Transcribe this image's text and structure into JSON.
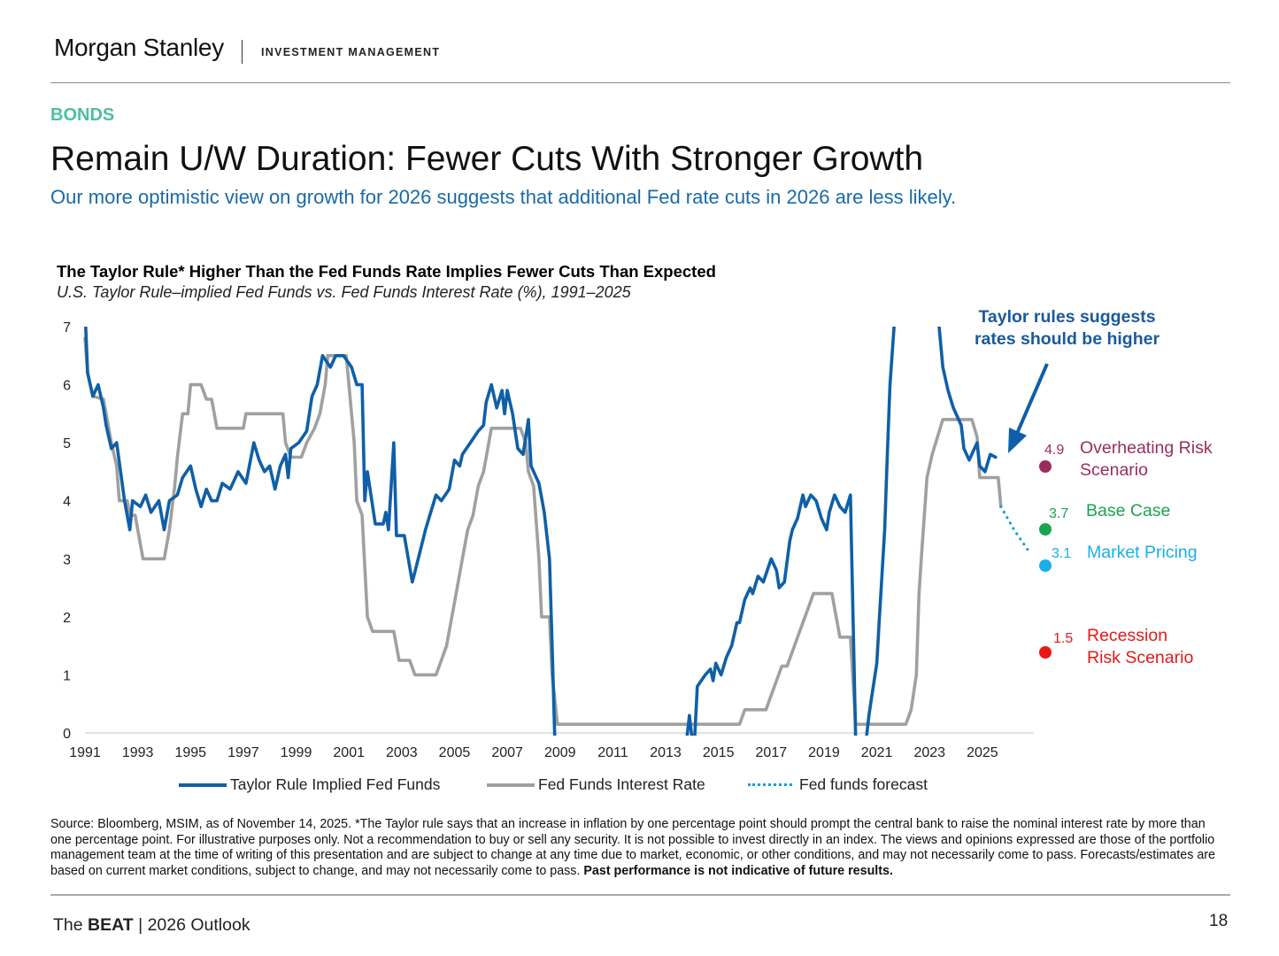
{
  "header": {
    "logo": "Morgan Stanley",
    "division": "INVESTMENT MANAGEMENT"
  },
  "section": "BONDS",
  "title": "Remain U/W Duration: Fewer Cuts With Stronger Growth",
  "subtitle": "Our more optimistic view on growth for 2026 suggests that additional Fed rate cuts in 2026 are less likely.",
  "colors": {
    "taylor": "#0f5fa8",
    "fedfunds": "#a0a0a0",
    "forecast": "#1aa0d0",
    "overheating": "#9b2d5e",
    "base": "#1aa550",
    "market": "#1aaee8",
    "recession": "#e81818",
    "section": "#4dbfa0",
    "subtitle": "#1a6aa5"
  },
  "chart_data": {
    "type": "line",
    "title": "The Taylor Rule* Higher Than the Fed Funds Rate Implies Fewer Cuts Than Expected",
    "subtitle": "U.S. Taylor Rule–implied Fed Funds vs. Fed Funds Interest Rate (%), 1991–2025",
    "xlabel": "",
    "ylabel": "",
    "xlim": [
      1991,
      2028
    ],
    "ylim": [
      0,
      7
    ],
    "x_ticks": [
      "1991",
      "1993",
      "1995",
      "1997",
      "1999",
      "2001",
      "2003",
      "2005",
      "2007",
      "2009",
      "2011",
      "2013",
      "2015",
      "2017",
      "2019",
      "2021",
      "2023",
      "2025"
    ],
    "y_ticks": [
      "0",
      "1",
      "2",
      "3",
      "4",
      "5",
      "6",
      "7"
    ],
    "grid": false,
    "legend_position": "bottom",
    "series": [
      {
        "name": "Taylor Rule Implied Fed Funds",
        "style": "solid",
        "points": [
          [
            1991.0,
            7.0
          ],
          [
            1991.1,
            6.2
          ],
          [
            1991.3,
            5.8
          ],
          [
            1991.5,
            6.0
          ],
          [
            1991.7,
            5.6
          ],
          [
            1991.8,
            5.3
          ],
          [
            1992.0,
            4.9
          ],
          [
            1992.2,
            5.0
          ],
          [
            1992.5,
            4.0
          ],
          [
            1992.7,
            3.5
          ],
          [
            1992.8,
            4.0
          ],
          [
            1993.1,
            3.9
          ],
          [
            1993.3,
            4.1
          ],
          [
            1993.5,
            3.8
          ],
          [
            1993.8,
            4.0
          ],
          [
            1994.0,
            3.5
          ],
          [
            1994.2,
            4.0
          ],
          [
            1994.5,
            4.1
          ],
          [
            1994.7,
            4.4
          ],
          [
            1995.0,
            4.6
          ],
          [
            1995.2,
            4.2
          ],
          [
            1995.4,
            3.9
          ],
          [
            1995.6,
            4.2
          ],
          [
            1995.8,
            4.0
          ],
          [
            1996.0,
            4.0
          ],
          [
            1996.2,
            4.3
          ],
          [
            1996.5,
            4.2
          ],
          [
            1996.8,
            4.5
          ],
          [
            1997.1,
            4.3
          ],
          [
            1997.4,
            5.0
          ],
          [
            1997.6,
            4.7
          ],
          [
            1997.8,
            4.5
          ],
          [
            1998.0,
            4.6
          ],
          [
            1998.2,
            4.2
          ],
          [
            1998.4,
            4.6
          ],
          [
            1998.6,
            4.8
          ],
          [
            1998.7,
            4.4
          ],
          [
            1998.8,
            4.9
          ],
          [
            1999.1,
            5.0
          ],
          [
            1999.4,
            5.2
          ],
          [
            1999.6,
            5.8
          ],
          [
            1999.8,
            6.0
          ],
          [
            2000.0,
            6.5
          ],
          [
            2000.3,
            6.3
          ],
          [
            2000.5,
            6.5
          ],
          [
            2000.8,
            6.5
          ],
          [
            2001.1,
            6.3
          ],
          [
            2001.3,
            6.0
          ],
          [
            2001.5,
            6.0
          ],
          [
            2001.6,
            4.0
          ],
          [
            2001.7,
            4.5
          ],
          [
            2002.0,
            3.6
          ],
          [
            2002.3,
            3.6
          ],
          [
            2002.4,
            3.8
          ],
          [
            2002.5,
            3.5
          ],
          [
            2002.7,
            5.0
          ],
          [
            2002.8,
            3.4
          ],
          [
            2003.1,
            3.4
          ],
          [
            2003.4,
            2.6
          ],
          [
            2003.6,
            2.95
          ],
          [
            2003.9,
            3.5
          ],
          [
            2004.1,
            3.8
          ],
          [
            2004.3,
            4.1
          ],
          [
            2004.5,
            4.0
          ],
          [
            2004.8,
            4.2
          ],
          [
            2005.0,
            4.7
          ],
          [
            2005.2,
            4.6
          ],
          [
            2005.3,
            4.8
          ],
          [
            2005.6,
            5.0
          ],
          [
            2005.9,
            5.2
          ],
          [
            2006.1,
            5.3
          ],
          [
            2006.2,
            5.7
          ],
          [
            2006.4,
            6.0
          ],
          [
            2006.6,
            5.6
          ],
          [
            2006.8,
            5.9
          ],
          [
            2006.9,
            5.5
          ],
          [
            2007.0,
            5.9
          ],
          [
            2007.2,
            5.5
          ],
          [
            2007.4,
            4.9
          ],
          [
            2007.6,
            4.8
          ],
          [
            2007.8,
            5.4
          ],
          [
            2007.9,
            4.6
          ],
          [
            2008.2,
            4.3
          ],
          [
            2008.4,
            3.8
          ],
          [
            2008.6,
            3.0
          ],
          [
            2008.7,
            1.5
          ],
          [
            2008.8,
            0.0
          ],
          [
            2013.8,
            0.0
          ],
          [
            2013.9,
            0.3
          ],
          [
            2014.0,
            0.0
          ],
          [
            2014.1,
            0.0
          ],
          [
            2014.2,
            0.8
          ],
          [
            2014.5,
            1.0
          ],
          [
            2014.7,
            1.1
          ],
          [
            2014.8,
            0.9
          ],
          [
            2014.9,
            1.2
          ],
          [
            2015.1,
            1.0
          ],
          [
            2015.3,
            1.3
          ],
          [
            2015.5,
            1.5
          ],
          [
            2015.7,
            1.9
          ],
          [
            2015.8,
            1.9
          ],
          [
            2016.0,
            2.3
          ],
          [
            2016.2,
            2.5
          ],
          [
            2016.3,
            2.4
          ],
          [
            2016.5,
            2.7
          ],
          [
            2016.7,
            2.6
          ],
          [
            2017.0,
            3.0
          ],
          [
            2017.2,
            2.8
          ],
          [
            2017.3,
            2.5
          ],
          [
            2017.5,
            2.6
          ],
          [
            2017.7,
            3.3
          ],
          [
            2017.8,
            3.5
          ],
          [
            2018.0,
            3.7
          ],
          [
            2018.2,
            4.1
          ],
          [
            2018.3,
            3.9
          ],
          [
            2018.5,
            4.1
          ],
          [
            2018.7,
            4.0
          ],
          [
            2018.9,
            3.7
          ],
          [
            2019.1,
            3.5
          ],
          [
            2019.2,
            3.8
          ],
          [
            2019.4,
            4.1
          ],
          [
            2019.6,
            3.9
          ],
          [
            2019.8,
            3.8
          ],
          [
            2020.0,
            4.1
          ],
          [
            2020.2,
            0.0
          ],
          [
            2020.6,
            0.0
          ],
          [
            2020.7,
            0.3
          ],
          [
            2020.8,
            0.6
          ],
          [
            2021.0,
            1.2
          ],
          [
            2021.1,
            2.0
          ],
          [
            2021.3,
            3.5
          ],
          [
            2021.4,
            4.8
          ],
          [
            2021.5,
            6.0
          ],
          [
            2021.7,
            7.0
          ],
          [
            2023.3,
            7.0
          ],
          [
            2023.5,
            6.3
          ],
          [
            2023.7,
            5.9
          ],
          [
            2023.9,
            5.6
          ],
          [
            2024.0,
            5.5
          ],
          [
            2024.2,
            5.3
          ],
          [
            2024.3,
            4.9
          ],
          [
            2024.5,
            4.7
          ],
          [
            2024.7,
            4.9
          ],
          [
            2024.8,
            5.0
          ],
          [
            2024.9,
            4.6
          ],
          [
            2025.1,
            4.5
          ],
          [
            2025.3,
            4.8
          ],
          [
            2025.5,
            4.75
          ]
        ]
      },
      {
        "name": "Fed Funds Interest Rate",
        "style": "solid",
        "points": [
          [
            1991.0,
            6.8
          ],
          [
            1991.1,
            6.2
          ],
          [
            1991.3,
            5.8
          ],
          [
            1991.7,
            5.75
          ],
          [
            1991.8,
            5.5
          ],
          [
            1992.0,
            5.0
          ],
          [
            1992.2,
            4.6
          ],
          [
            1992.3,
            4.0
          ],
          [
            1992.6,
            4.0
          ],
          [
            1992.7,
            3.75
          ],
          [
            1992.9,
            3.75
          ],
          [
            1993.1,
            3.25
          ],
          [
            1993.2,
            3.0
          ],
          [
            1994.0,
            3.0
          ],
          [
            1994.2,
            3.5
          ],
          [
            1994.4,
            4.25
          ],
          [
            1994.5,
            4.75
          ],
          [
            1994.7,
            5.5
          ],
          [
            1994.9,
            5.5
          ],
          [
            1995.0,
            6.0
          ],
          [
            1995.4,
            6.0
          ],
          [
            1995.6,
            5.75
          ],
          [
            1995.8,
            5.75
          ],
          [
            1996.0,
            5.25
          ],
          [
            1997.0,
            5.25
          ],
          [
            1997.1,
            5.5
          ],
          [
            1998.5,
            5.5
          ],
          [
            1998.6,
            5.0
          ],
          [
            1998.8,
            4.75
          ],
          [
            1999.2,
            4.75
          ],
          [
            1999.4,
            5.0
          ],
          [
            1999.7,
            5.25
          ],
          [
            1999.9,
            5.5
          ],
          [
            2000.1,
            6.0
          ],
          [
            2000.2,
            6.5
          ],
          [
            2000.9,
            6.5
          ],
          [
            2001.1,
            5.5
          ],
          [
            2001.2,
            5.0
          ],
          [
            2001.3,
            4.0
          ],
          [
            2001.5,
            3.75
          ],
          [
            2001.7,
            2.0
          ],
          [
            2001.9,
            1.75
          ],
          [
            2002.7,
            1.75
          ],
          [
            2002.9,
            1.25
          ],
          [
            2003.3,
            1.25
          ],
          [
            2003.5,
            1.0
          ],
          [
            2004.3,
            1.0
          ],
          [
            2004.5,
            1.25
          ],
          [
            2004.7,
            1.5
          ],
          [
            2004.9,
            2.0
          ],
          [
            2005.1,
            2.5
          ],
          [
            2005.3,
            3.0
          ],
          [
            2005.5,
            3.5
          ],
          [
            2005.7,
            3.75
          ],
          [
            2005.9,
            4.25
          ],
          [
            2006.1,
            4.5
          ],
          [
            2006.2,
            4.75
          ],
          [
            2006.4,
            5.25
          ],
          [
            2007.5,
            5.25
          ],
          [
            2007.7,
            5.0
          ],
          [
            2007.8,
            4.5
          ],
          [
            2008.0,
            4.25
          ],
          [
            2008.2,
            3.0
          ],
          [
            2008.3,
            2.0
          ],
          [
            2008.6,
            2.0
          ],
          [
            2008.7,
            1.0
          ],
          [
            2008.9,
            0.15
          ],
          [
            2015.8,
            0.15
          ],
          [
            2016.0,
            0.4
          ],
          [
            2016.8,
            0.4
          ],
          [
            2017.0,
            0.65
          ],
          [
            2017.2,
            0.9
          ],
          [
            2017.4,
            1.15
          ],
          [
            2017.6,
            1.15
          ],
          [
            2017.8,
            1.4
          ],
          [
            2018.0,
            1.65
          ],
          [
            2018.2,
            1.9
          ],
          [
            2018.4,
            2.15
          ],
          [
            2018.6,
            2.4
          ],
          [
            2019.3,
            2.4
          ],
          [
            2019.4,
            2.15
          ],
          [
            2019.6,
            1.65
          ],
          [
            2020.0,
            1.65
          ],
          [
            2020.2,
            0.15
          ],
          [
            2022.1,
            0.15
          ],
          [
            2022.3,
            0.4
          ],
          [
            2022.5,
            1.0
          ],
          [
            2022.6,
            2.4
          ],
          [
            2022.7,
            3.1
          ],
          [
            2022.9,
            4.4
          ],
          [
            2023.1,
            4.8
          ],
          [
            2023.3,
            5.1
          ],
          [
            2023.5,
            5.4
          ],
          [
            2024.6,
            5.4
          ],
          [
            2024.8,
            5.1
          ],
          [
            2024.9,
            4.4
          ],
          [
            2025.6,
            4.4
          ],
          [
            2025.7,
            3.9
          ]
        ]
      },
      {
        "name": "Fed funds forecast",
        "style": "dotted",
        "points": [
          [
            2025.7,
            3.9
          ],
          [
            2026.2,
            3.5
          ],
          [
            2026.8,
            3.1
          ]
        ]
      }
    ],
    "scenarios": [
      {
        "value": 4.9,
        "value_label": "4.9",
        "label_line1": "Overheating Risk",
        "label_line2": "Scenario",
        "color": "#9b2d5e"
      },
      {
        "value": 3.7,
        "value_label": "3.7",
        "label_line1": "Base Case",
        "label_line2": "",
        "color": "#1aa550"
      },
      {
        "value": 3.1,
        "value_label": "3.1",
        "label_line1": "Market Pricing",
        "label_line2": "",
        "color": "#1aaee8"
      },
      {
        "value": 1.5,
        "value_label": "1.5",
        "label_line1": "Recession",
        "label_line2": "Risk Scenario",
        "color": "#e81818"
      }
    ],
    "annotation": {
      "line1": "Taylor rules suggests",
      "line2": "rates should be higher"
    }
  },
  "legend": [
    {
      "label": "Taylor Rule Implied Fed Funds"
    },
    {
      "label": "Fed Funds Interest Rate"
    },
    {
      "label": "Fed funds forecast"
    }
  ],
  "source": {
    "text": "Source: Bloomberg, MSIM, as of November 14, 2025. *The Taylor rule says that an increase in inflation by one percentage point should prompt the central bank to raise the nominal interest rate by more than one percentage point. For illustrative purposes only. Not a recommendation to buy or sell any security. It is not possible to invest directly in an index. The views and opinions expressed are those of the portfolio management team at the time of writing of this presentation and are subject to change at any time due to market, economic, or other conditions, and may not necessarily come to pass.  Forecasts/estimates are based on current market conditions, subject to change, and may not necessarily come to pass. ",
    "bold": "Past performance is not indicative of future results."
  },
  "footer": {
    "pre": "The ",
    "bold": "BEAT",
    "post": " | 2026 Outlook",
    "page": "18"
  }
}
